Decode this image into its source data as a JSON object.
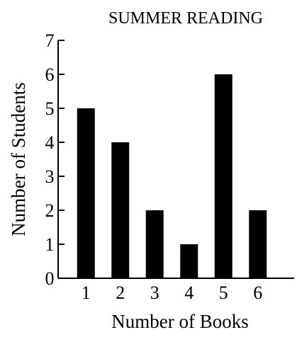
{
  "chart_data": {
    "type": "bar",
    "title": "SUMMER READING",
    "xlabel": "Number of Books",
    "ylabel": "Number of Students",
    "categories": [
      "1",
      "2",
      "3",
      "4",
      "5",
      "6"
    ],
    "values": [
      5,
      4,
      2,
      1,
      6,
      2
    ],
    "y_ticks": [
      "0",
      "1",
      "2",
      "3",
      "4",
      "5",
      "6",
      "7"
    ],
    "ylim": [
      0,
      7
    ],
    "grid": false,
    "colors": {
      "bar": "#000000",
      "axis": "#000000",
      "text": "#000000"
    }
  }
}
